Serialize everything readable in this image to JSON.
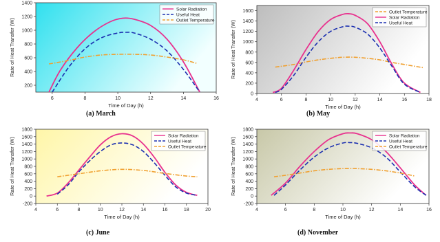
{
  "chart_data": [
    {
      "type": "line",
      "caption": "(a) March",
      "xlabel": "Time of Day (h)",
      "ylabel": "Rate of Heat Transfer (W)",
      "xlim": [
        5,
        16
      ],
      "ylim": [
        100,
        1400
      ],
      "xticks": [
        6,
        8,
        10,
        12,
        14,
        16
      ],
      "yticks": [
        200,
        400,
        600,
        800,
        1000,
        1200,
        1400
      ],
      "legend_position": "top-right",
      "background": [
        "#30e0ee",
        "#f2ffff"
      ],
      "series": [
        {
          "name": "Solar Radiation",
          "color": "#e8318e",
          "dash": "solid",
          "x": [
            5.8,
            6.5,
            7.5,
            8.5,
            9.5,
            10.3,
            11,
            12,
            13,
            14,
            15
          ],
          "y": [
            100,
            420,
            740,
            970,
            1120,
            1175,
            1160,
            1070,
            870,
            540,
            100
          ]
        },
        {
          "name": "Useful Heat",
          "color": "#1b2fb0",
          "dash": "dash",
          "x": [
            6,
            7,
            8,
            9,
            10,
            10.5,
            11,
            12,
            13,
            14,
            15
          ],
          "y": [
            100,
            460,
            730,
            890,
            960,
            970,
            960,
            870,
            700,
            430,
            100
          ]
        },
        {
          "name": "Outlet Temperature",
          "color": "#f0a030",
          "dash": "dashdot",
          "x": [
            5.8,
            7,
            8,
            9,
            10,
            11,
            12,
            13,
            14,
            14.8
          ],
          "y": [
            510,
            560,
            610,
            640,
            650,
            650,
            640,
            610,
            570,
            520
          ]
        }
      ]
    },
    {
      "type": "line",
      "caption": "(b) May",
      "xlabel": "Time of Day (h)",
      "ylabel": "Rate of Heat Transfer (W)",
      "xlim": [
        4,
        18
      ],
      "ylim": [
        0,
        1700
      ],
      "xticks": [
        4,
        6,
        8,
        10,
        12,
        14,
        16,
        18
      ],
      "yticks": [
        0,
        200,
        400,
        600,
        800,
        1000,
        1200,
        1400,
        1600
      ],
      "legend_position": "top-right",
      "background": [
        "#bdbdbd",
        "#ffffff"
      ],
      "series": [
        {
          "name": "Outlet Temperature",
          "color": "#f0a030",
          "dash": "dashdot",
          "x": [
            5.5,
            7,
            8,
            9,
            10,
            11,
            12,
            13,
            14,
            15,
            16,
            17.5
          ],
          "y": [
            510,
            560,
            610,
            650,
            680,
            700,
            700,
            680,
            650,
            600,
            560,
            500
          ]
        },
        {
          "name": "Solar Radiation",
          "color": "#e8318e",
          "dash": "solid",
          "x": [
            5.3,
            6,
            7,
            8,
            9,
            10,
            11,
            11.5,
            12,
            13,
            14,
            15,
            16,
            17.3
          ],
          "y": [
            20,
            100,
            450,
            850,
            1200,
            1430,
            1530,
            1540,
            1510,
            1350,
            1000,
            560,
            200,
            20
          ]
        },
        {
          "name": "Useful Heat",
          "color": "#1b2fb0",
          "dash": "dash",
          "x": [
            5.5,
            6,
            7,
            8,
            9,
            10,
            11,
            11.5,
            12,
            13,
            14,
            15,
            16,
            17.3
          ],
          "y": [
            20,
            80,
            350,
            700,
            1000,
            1200,
            1290,
            1300,
            1280,
            1150,
            880,
            520,
            180,
            20
          ]
        }
      ]
    },
    {
      "type": "line",
      "caption": "(c) June",
      "xlabel": "Time of Day (h)",
      "ylabel": "Rate of Heat Transfer (W)",
      "xlim": [
        4,
        20
      ],
      "ylim": [
        -200,
        1800
      ],
      "xticks": [
        4,
        6,
        8,
        10,
        12,
        14,
        16,
        18,
        20
      ],
      "yticks": [
        -200,
        0,
        200,
        400,
        600,
        800,
        1000,
        1200,
        1400,
        1600,
        1800
      ],
      "legend_position": "top-right",
      "background": [
        "#fff6a8",
        "#ffffff"
      ],
      "series": [
        {
          "name": "Solar Radiation",
          "color": "#e8318e",
          "dash": "solid",
          "x": [
            5,
            6,
            7,
            8,
            9,
            10,
            11,
            12,
            13,
            14,
            15,
            16,
            17,
            18,
            19
          ],
          "y": [
            0,
            80,
            350,
            700,
            1050,
            1380,
            1600,
            1680,
            1620,
            1400,
            1050,
            640,
            300,
            100,
            20
          ]
        },
        {
          "name": "Useful Heat",
          "color": "#1b2fb0",
          "dash": "dash",
          "x": [
            6,
            7,
            8,
            9,
            10,
            11,
            12,
            13,
            14,
            15,
            16,
            17,
            18,
            19
          ],
          "y": [
            50,
            300,
            650,
            950,
            1200,
            1380,
            1430,
            1380,
            1200,
            900,
            560,
            250,
            80,
            20
          ]
        },
        {
          "name": "Outlet Temperature",
          "color": "#f0a030",
          "dash": "dashdot",
          "x": [
            6,
            8,
            10,
            12,
            14,
            16,
            18,
            19
          ],
          "y": [
            520,
            600,
            680,
            720,
            690,
            610,
            540,
            520
          ]
        }
      ]
    },
    {
      "type": "line",
      "caption": "(d) November",
      "xlabel": "Time of Day (h)",
      "ylabel": "Rate of Heat Transfer (W)",
      "xlim": [
        4,
        16
      ],
      "ylim": [
        -200,
        1800
      ],
      "xticks": [
        4,
        6,
        8,
        10,
        12,
        14,
        16
      ],
      "yticks": [
        -200,
        0,
        200,
        400,
        600,
        800,
        1000,
        1200,
        1400,
        1600,
        1800
      ],
      "legend_position": "top-right",
      "background": [
        "#c8c8a8",
        "#ffffff"
      ],
      "series": [
        {
          "name": "Solar Radiation",
          "color": "#e8318e",
          "dash": "solid",
          "x": [
            5,
            6,
            7,
            8,
            9,
            10,
            10.5,
            11,
            12,
            13,
            14,
            15,
            15.8
          ],
          "y": [
            20,
            350,
            800,
            1200,
            1520,
            1680,
            1700,
            1680,
            1520,
            1200,
            760,
            300,
            20
          ]
        },
        {
          "name": "Useful Heat",
          "color": "#1b2fb0",
          "dash": "dash",
          "x": [
            5.2,
            6,
            7,
            8,
            9,
            10,
            10.5,
            11,
            12,
            13,
            14,
            15,
            15.8
          ],
          "y": [
            20,
            300,
            700,
            1050,
            1300,
            1430,
            1440,
            1420,
            1300,
            1050,
            650,
            250,
            20
          ]
        },
        {
          "name": "Outlet Temperature",
          "color": "#f0a030",
          "dash": "dashdot",
          "x": [
            5.2,
            6,
            7,
            8,
            9,
            10,
            11,
            12,
            13,
            14,
            15
          ],
          "y": [
            520,
            560,
            620,
            680,
            720,
            740,
            740,
            720,
            680,
            620,
            540
          ]
        }
      ]
    }
  ]
}
